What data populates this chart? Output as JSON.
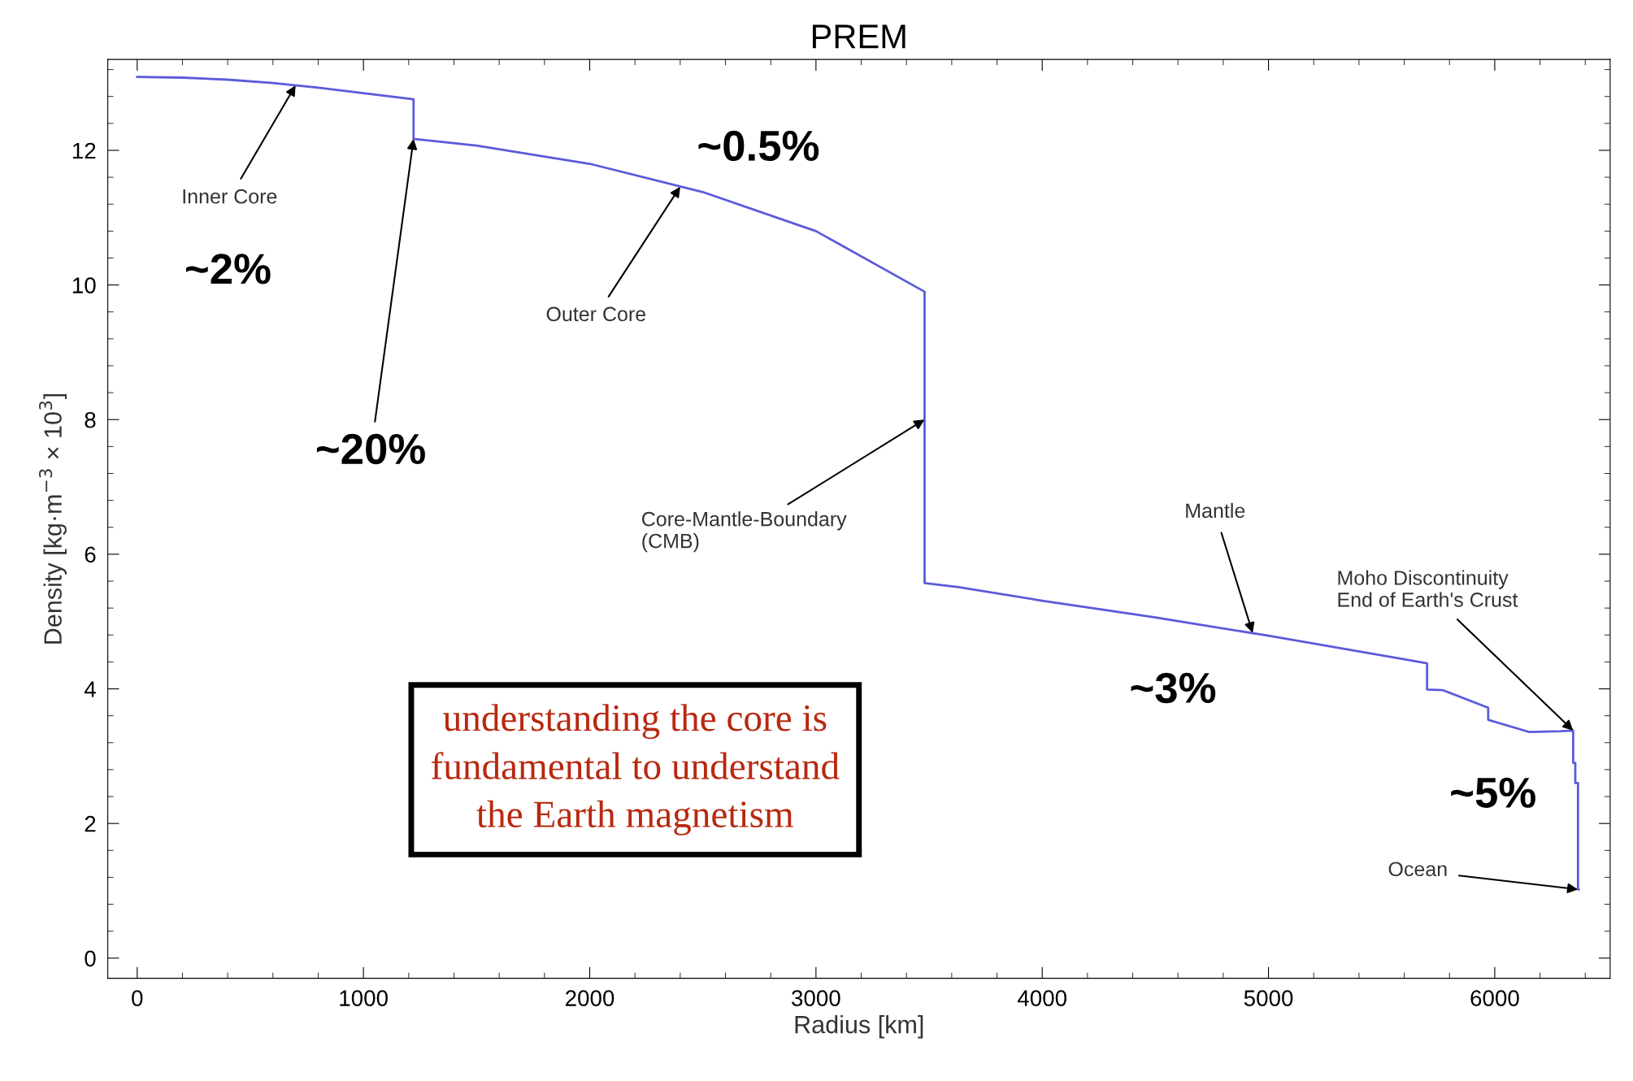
{
  "chart_data": {
    "type": "line",
    "title": "PREM",
    "xlabel": "Radius [km]",
    "ylabel": "Density [kg·m$^{−3}$ × 10$^{3}$]",
    "x": [
      0,
      200,
      400,
      600,
      800,
      1000,
      1221.5,
      1221.5,
      1500,
      2000,
      2500,
      3000,
      3480,
      3480,
      3630,
      4000,
      4500,
      5000,
      5600,
      5701,
      5701,
      5771,
      5971,
      5971,
      6151,
      6291,
      6346.6,
      6346.6,
      6356,
      6356,
      6368,
      6368,
      6371
    ],
    "series": [
      {
        "color": "#5b5bdb",
        "values": [
          13.09,
          13.08,
          13.05,
          13.0,
          12.93,
          12.85,
          12.76,
          12.17,
          12.07,
          11.8,
          11.38,
          10.8,
          9.9,
          5.57,
          5.51,
          5.31,
          5.06,
          4.79,
          4.44,
          4.38,
          3.99,
          3.98,
          3.72,
          3.54,
          3.36,
          3.37,
          3.38,
          2.9,
          2.9,
          2.6,
          2.6,
          1.02,
          1.02
        ]
      }
    ],
    "xlim": [
      -130,
      6510
    ],
    "ylim": [
      -0.3,
      13.35
    ],
    "xticks": [
      0,
      1000,
      2000,
      3000,
      4000,
      5000,
      6000
    ],
    "yticks": [
      0,
      2,
      4,
      6,
      8,
      10,
      12
    ],
    "grid": false,
    "legend": false,
    "marker": "none",
    "line_style": "solid",
    "annotations": [
      {
        "text": "Inner Core",
        "x": 700,
        "y": 12.965
      },
      "~2%",
      {
        "text": "~20%",
        "x": 1221.5,
        "y": 12.17
      },
      "~0.5%",
      {
        "text": "Outer Core",
        "x": 2400,
        "y": 11.46
      },
      {
        "text": "Core-Mantle-Boundary\n(CMB)",
        "x": 3480,
        "y": 8.0
      },
      {
        "text": "Mantle",
        "x": 4930,
        "y": 4.83
      },
      {
        "text": "Moho Discontinuity\nEnd of Earth's Crust",
        "x": 6346.6,
        "y": 3.38
      },
      "~3%",
      "~5%",
      {
        "text": "Ocean",
        "x": 6368,
        "y": 1.02
      },
      "understanding the core is\nfundamental to understand\nthe Earth magnetism"
    ]
  }
}
